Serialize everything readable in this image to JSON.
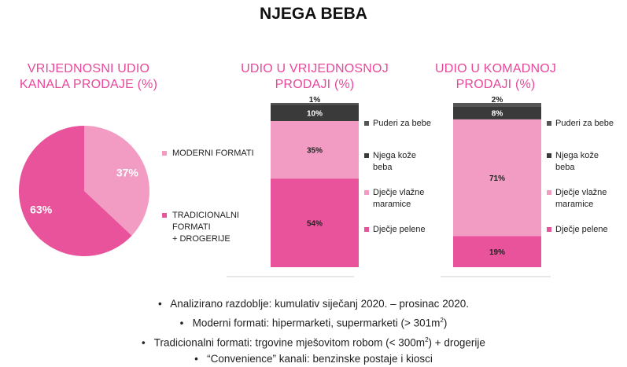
{
  "title": "NJEGA BEBA",
  "pie": {
    "title_line1": "VRIJEDNOSNI UDIO",
    "title_line2": "KANALA PRODAJE (%)",
    "legend": [
      {
        "label_lines": [
          "MODERNI FORMATI"
        ],
        "color": "#f29cc3"
      },
      {
        "label_lines": [
          "TRADICIONALNI",
          "FORMATI",
          "+ DROGERIJE"
        ],
        "color": "#e8539b"
      }
    ]
  },
  "bar1": {
    "title_line1": "UDIO U VRIJEDNOSNOJ",
    "title_line2": "PRODAJI (%)"
  },
  "bar2": {
    "title_line1": "UDIO U KOMADNOJ",
    "title_line2": "PRODAJI (%)"
  },
  "bar_legend": [
    {
      "label_lines": [
        "Puderi za bebe"
      ],
      "color": "#555555"
    },
    {
      "label_lines": [
        "Njega kože",
        "beba"
      ],
      "color": "#3a3a3a"
    },
    {
      "label_lines": [
        "Dječje vlažne",
        "maramice"
      ],
      "color": "#f29cc3"
    },
    {
      "label_lines": [
        "Dječje pelene"
      ],
      "color": "#e8539b"
    }
  ],
  "chart_data": [
    {
      "type": "pie",
      "title": "VRIJEDNOSNI UDIO KANALA PRODAJE (%)",
      "categories": [
        "MODERNI FORMATI",
        "TRADICIONALNI FORMATI + DROGERIJE"
      ],
      "values": [
        37,
        63
      ],
      "value_labels": [
        "37%",
        "63%"
      ],
      "colors": [
        "#f29cc3",
        "#e8539b"
      ]
    },
    {
      "type": "bar",
      "stacked": true,
      "title": "UDIO U VRIJEDNOSNOJ PRODAJI (%)",
      "series": [
        {
          "name": "Dječje pelene",
          "values": [
            54
          ],
          "label": "54%",
          "color": "#e8539b"
        },
        {
          "name": "Dječje vlažne maramice",
          "values": [
            35
          ],
          "label": "35%",
          "color": "#f29cc3"
        },
        {
          "name": "Njega kože beba",
          "values": [
            10
          ],
          "label": "10%",
          "color": "#3a3a3a"
        },
        {
          "name": "Puderi za bebe",
          "values": [
            1
          ],
          "label": "1%",
          "color": "#555555"
        }
      ]
    },
    {
      "type": "bar",
      "stacked": true,
      "title": "UDIO U KOMADNOJ PRODAJI (%)",
      "series": [
        {
          "name": "Dječje pelene",
          "values": [
            19
          ],
          "label": "19%",
          "color": "#e8539b"
        },
        {
          "name": "Dječje vlažne maramice",
          "values": [
            71
          ],
          "label": "71%",
          "color": "#f29cc3"
        },
        {
          "name": "Njega kože beba",
          "values": [
            8
          ],
          "label": "8%",
          "color": "#3a3a3a"
        },
        {
          "name": "Puderi za bebe",
          "values": [
            2
          ],
          "label": "2%",
          "color": "#555555"
        }
      ]
    }
  ],
  "notes": [
    {
      "pre": "Analizirano razdoblje: kumulativ siječanj 2020. – prosinac 2020.",
      "sup": "",
      "post": ""
    },
    {
      "pre": "Moderni formati: hipermarketi, supermarketi (> 301m",
      "sup": "2",
      "post": ")"
    },
    {
      "pre": "Tradicionalni formati: trgovine mješovitom robom (< 300m",
      "sup": "2",
      "post": ") + drogerije"
    },
    {
      "pre": "“Convenience” kanali: benzinske postaje i kiosci",
      "sup": "",
      "post": ""
    }
  ],
  "bullet": "•"
}
